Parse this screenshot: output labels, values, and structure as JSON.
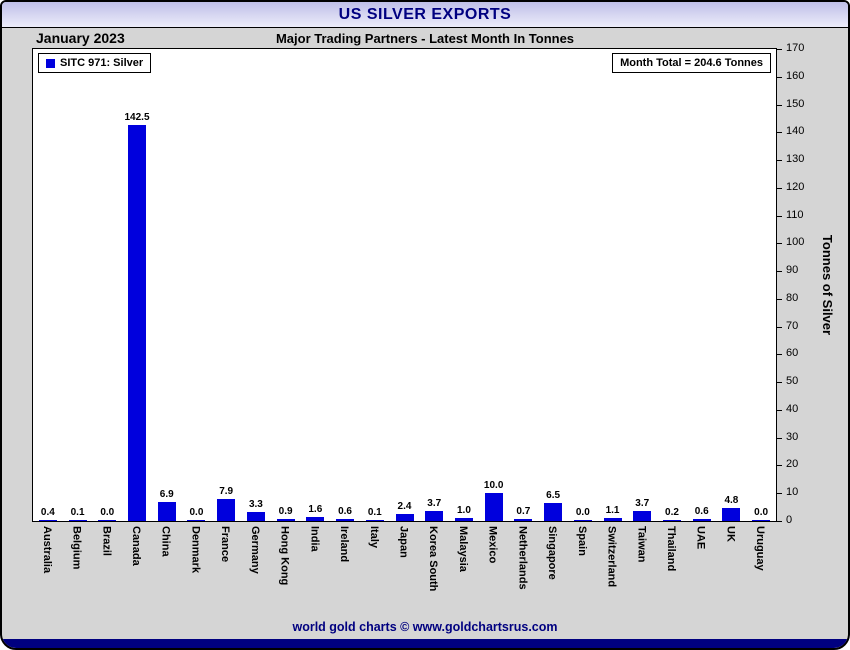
{
  "header": {
    "title": "US SILVER EXPORTS",
    "date": "January 2023",
    "subtitle": "Major Trading Partners - Latest Month In Tonnes",
    "month_total": "Month Total = 204.6 Tonnes"
  },
  "legend": {
    "label": "SITC 971: Silver"
  },
  "footer": {
    "credit": "world gold charts © www.goldchartsrus.com"
  },
  "colors": {
    "bar": "#0000dd",
    "accent_navy": "#000080",
    "frame_bg": "#d5d5d5",
    "titlebar_bg": "#c9c9ec"
  },
  "chart_data": {
    "type": "bar",
    "title": "US SILVER EXPORTS",
    "subtitle": "Major Trading Partners - Latest Month In Tonnes",
    "period": "January 2023",
    "series_name": "SITC 971: Silver",
    "month_total_tonnes": 204.6,
    "categories": [
      "Australia",
      "Belgium",
      "Brazil",
      "Canada",
      "China",
      "Denmark",
      "France",
      "Germany",
      "Hong Kong",
      "India",
      "Ireland",
      "Italy",
      "Japan",
      "Korea South",
      "Malaysia",
      "Mexico",
      "Netherlands",
      "Singapore",
      "Spain",
      "Switzerland",
      "Taiwan",
      "Thailand",
      "UAE",
      "UK",
      "Uruguay"
    ],
    "values": [
      0.4,
      0.1,
      0.0,
      142.5,
      6.9,
      0.0,
      7.9,
      3.3,
      0.9,
      1.6,
      0.6,
      0.1,
      2.4,
      3.7,
      1.0,
      10.0,
      0.7,
      6.5,
      0.0,
      1.1,
      3.7,
      0.2,
      0.6,
      4.8,
      0.0
    ],
    "xlabel": "",
    "ylabel": "Tonnes of Silver",
    "ylim": [
      0,
      170
    ],
    "ytick_step": 10,
    "grid": false,
    "legend_position": "top-left",
    "y_axis_side": "right"
  }
}
